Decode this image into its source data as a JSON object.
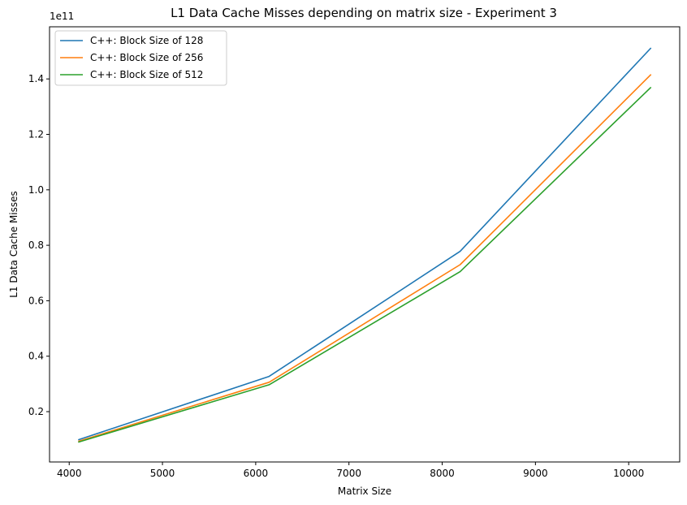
{
  "chart_data": {
    "type": "line",
    "title": "L1 Data Cache Misses depending on matrix size - Experiment 3",
    "xlabel": "Matrix Size",
    "ylabel": "L1 Data Cache Misses",
    "y_offset_text": "1e11",
    "x": [
      4096,
      6144,
      8192,
      10240
    ],
    "xlim": [
      3789,
      10547
    ],
    "ylim": [
      0.0185,
      1.588
    ],
    "x_ticks": [
      4000,
      5000,
      6000,
      7000,
      8000,
      9000,
      10000
    ],
    "x_tick_labels": [
      "4000",
      "5000",
      "6000",
      "7000",
      "8000",
      "9000",
      "10000"
    ],
    "y_ticks": [
      0.2,
      0.4,
      0.6,
      0.8,
      1.0,
      1.2,
      1.4
    ],
    "y_tick_labels": [
      "0.2",
      "0.4",
      "0.6",
      "0.8",
      "1.0",
      "1.2",
      "1.4"
    ],
    "grid": false,
    "legend_position": "top-left",
    "series": [
      {
        "name": "C++: Block Size of 128",
        "color": "#1f77b4",
        "values": [
          0.098,
          0.327,
          0.778,
          1.512
        ]
      },
      {
        "name": "C++: Block Size of 256",
        "color": "#ff7f0e",
        "values": [
          0.093,
          0.306,
          0.73,
          1.416
        ]
      },
      {
        "name": "C++: Block Size of 512",
        "color": "#2ca02c",
        "values": [
          0.09,
          0.297,
          0.705,
          1.37
        ]
      }
    ]
  }
}
